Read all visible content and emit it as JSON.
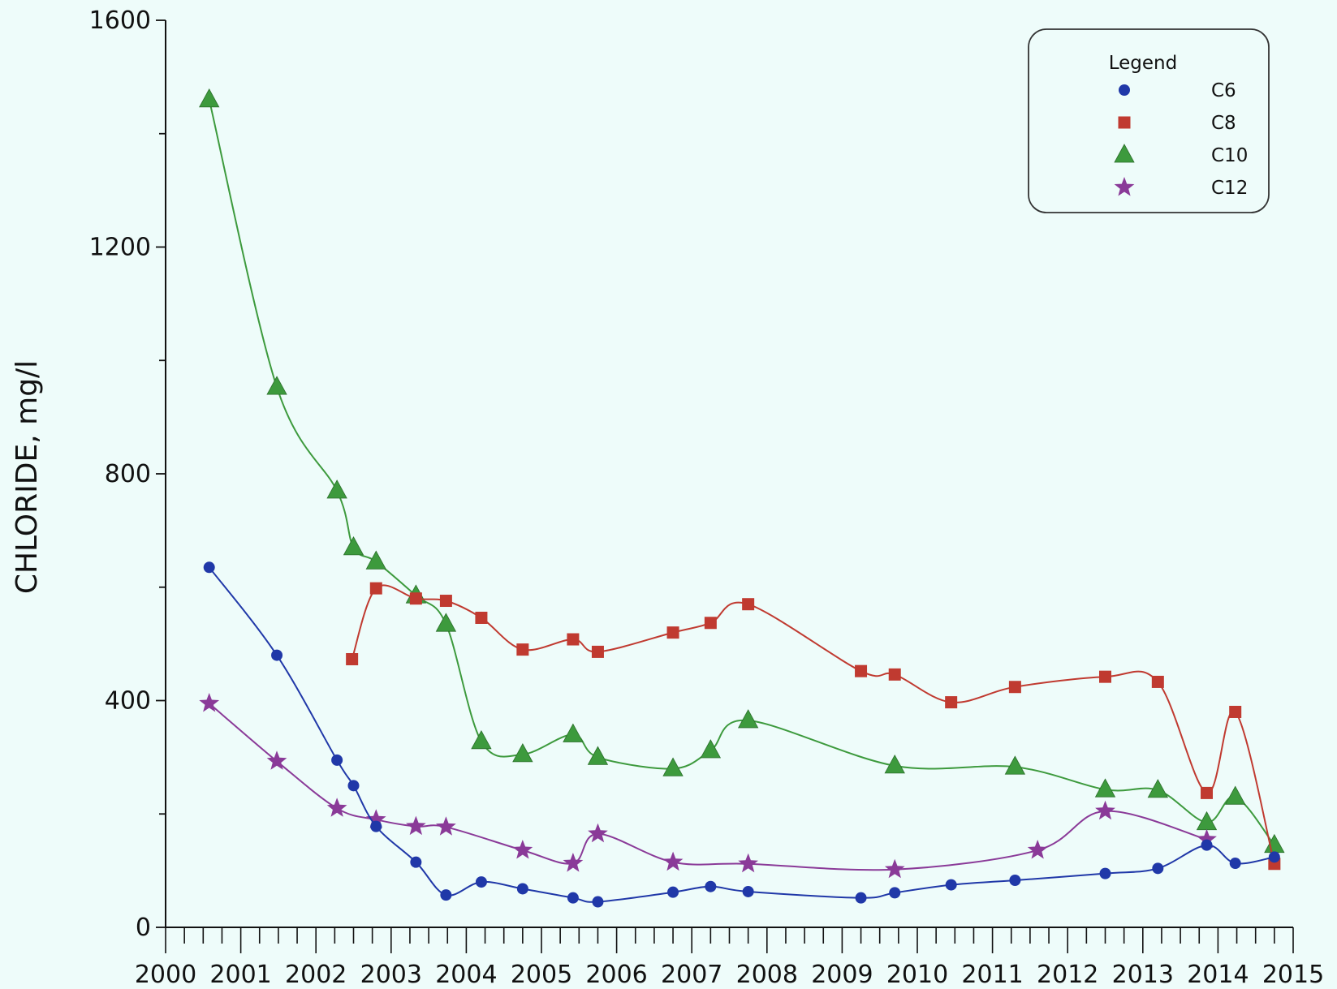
{
  "chart_data": {
    "type": "line",
    "xlabel": "",
    "ylabel": "CHLORIDE, mg/l",
    "xlim": [
      2000,
      2015
    ],
    "ylim": [
      0,
      1600
    ],
    "x_ticks": [
      "2000",
      "2001",
      "2002",
      "2003",
      "2004",
      "2005",
      "2006",
      "2007",
      "2008",
      "2009",
      "2010",
      "2011",
      "2012",
      "2013",
      "2014",
      "2015"
    ],
    "y_ticks": [
      "0",
      "400",
      "800",
      "1200",
      "1600"
    ],
    "grid": false,
    "legend": {
      "title": "Legend",
      "placement": "top-right"
    },
    "series": [
      {
        "name": "C6",
        "color": "#2038a8",
        "marker": "circle",
        "points": [
          [
            2000.58,
            635
          ],
          [
            2001.48,
            480
          ],
          [
            2002.28,
            295
          ],
          [
            2002.5,
            250
          ],
          [
            2002.8,
            178
          ],
          [
            2003.33,
            115
          ],
          [
            2003.73,
            57
          ],
          [
            2004.2,
            80
          ],
          [
            2004.75,
            68
          ],
          [
            2005.42,
            52
          ],
          [
            2005.75,
            45
          ],
          [
            2006.75,
            62
          ],
          [
            2007.25,
            72
          ],
          [
            2007.75,
            63
          ],
          [
            2009.25,
            52
          ],
          [
            2009.7,
            61
          ],
          [
            2010.45,
            75
          ],
          [
            2011.3,
            83
          ],
          [
            2012.5,
            95
          ],
          [
            2013.2,
            104
          ],
          [
            2013.85,
            145
          ],
          [
            2014.23,
            113
          ],
          [
            2014.75,
            124
          ]
        ]
      },
      {
        "name": "C8",
        "color": "#c03a30",
        "marker": "square",
        "points": [
          [
            2002.48,
            473
          ],
          [
            2002.8,
            598
          ],
          [
            2003.33,
            580
          ],
          [
            2003.73,
            576
          ],
          [
            2004.2,
            546
          ],
          [
            2004.75,
            490
          ],
          [
            2005.42,
            508
          ],
          [
            2005.75,
            486
          ],
          [
            2006.75,
            520
          ],
          [
            2007.25,
            537
          ],
          [
            2007.75,
            570
          ],
          [
            2009.25,
            452
          ],
          [
            2009.7,
            446
          ],
          [
            2010.45,
            397
          ],
          [
            2011.3,
            424
          ],
          [
            2012.5,
            442
          ],
          [
            2013.2,
            433
          ],
          [
            2013.85,
            237
          ],
          [
            2014.23,
            380
          ],
          [
            2014.75,
            112
          ]
        ]
      },
      {
        "name": "C10",
        "color": "#3d9a3d",
        "marker": "triangle",
        "points": [
          [
            2000.58,
            1460
          ],
          [
            2001.48,
            953
          ],
          [
            2002.28,
            770
          ],
          [
            2002.5,
            670
          ],
          [
            2002.8,
            645
          ],
          [
            2003.33,
            585
          ],
          [
            2003.73,
            535
          ],
          [
            2004.2,
            328
          ],
          [
            2004.75,
            305
          ],
          [
            2005.42,
            340
          ],
          [
            2005.75,
            300
          ],
          [
            2006.75,
            280
          ],
          [
            2007.25,
            312
          ],
          [
            2007.75,
            365
          ],
          [
            2009.7,
            285
          ],
          [
            2011.3,
            283
          ],
          [
            2012.5,
            243
          ],
          [
            2013.2,
            242
          ],
          [
            2013.85,
            185
          ],
          [
            2014.23,
            230
          ],
          [
            2014.75,
            145
          ]
        ]
      },
      {
        "name": "C12",
        "color": "#8a3a98",
        "marker": "star",
        "points": [
          [
            2000.58,
            395
          ],
          [
            2001.48,
            293
          ],
          [
            2002.28,
            210
          ],
          [
            2002.8,
            190
          ],
          [
            2003.33,
            178
          ],
          [
            2003.73,
            177
          ],
          [
            2004.75,
            136
          ],
          [
            2005.42,
            113
          ],
          [
            2005.75,
            165
          ],
          [
            2006.75,
            115
          ],
          [
            2007.75,
            112
          ],
          [
            2009.7,
            102
          ],
          [
            2011.6,
            136
          ],
          [
            2012.5,
            205
          ],
          [
            2013.85,
            155
          ]
        ]
      }
    ]
  }
}
